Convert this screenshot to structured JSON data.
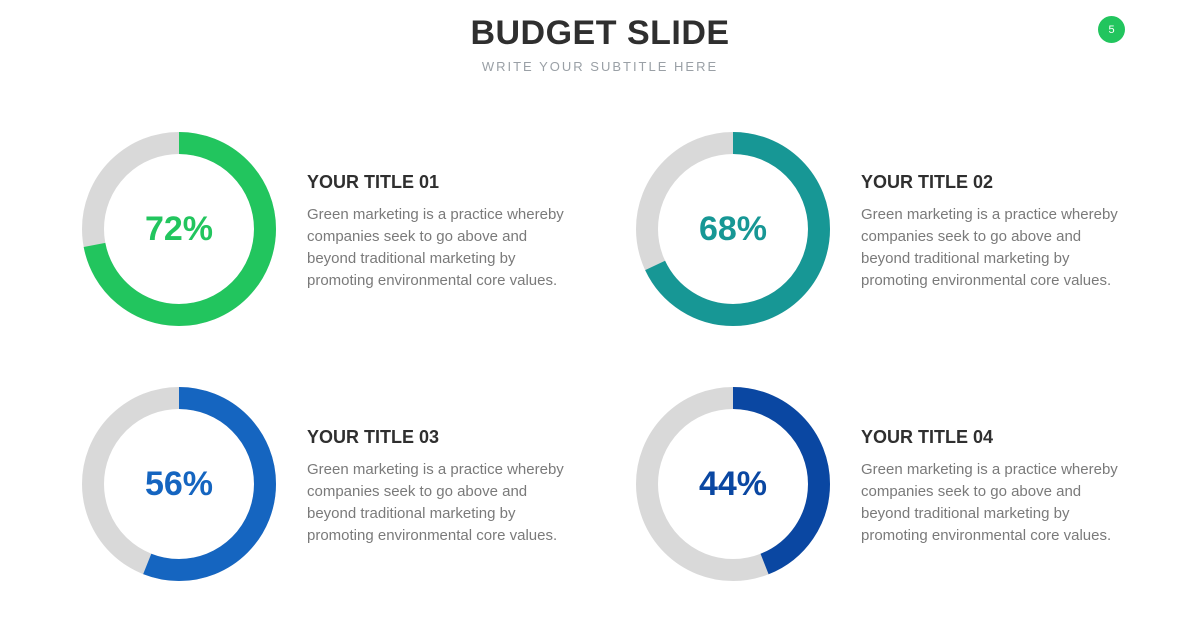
{
  "header": {
    "title": "BUDGET SLIDE",
    "subtitle": "WRITE YOUR SUBTITLE HERE",
    "page_number": "5",
    "page_badge_color": "#22c55e"
  },
  "chart_data": [
    {
      "type": "pie",
      "categories": [
        "Filled",
        "Remaining"
      ],
      "values": [
        72,
        28
      ],
      "title": "YOUR TITLE 01",
      "center_label": "72%",
      "description": "Green marketing is a practice whereby companies seek to go above and beyond traditional marketing by promoting environmental core values.",
      "colors": {
        "fill": "#22c55e",
        "track": "#d9d9d9",
        "label": "#22c55e"
      }
    },
    {
      "type": "pie",
      "categories": [
        "Filled",
        "Remaining"
      ],
      "values": [
        68,
        32
      ],
      "title": "YOUR TITLE 02",
      "center_label": "68%",
      "description": "Green marketing is a practice whereby companies seek to go above and beyond traditional marketing by promoting environmental core values.",
      "colors": {
        "fill": "#179795",
        "track": "#d9d9d9",
        "label": "#179795"
      }
    },
    {
      "type": "pie",
      "categories": [
        "Filled",
        "Remaining"
      ],
      "values": [
        56,
        44
      ],
      "title": "YOUR TITLE 03",
      "center_label": "56%",
      "description": "Green marketing is a practice whereby companies seek to go above and beyond traditional marketing by promoting environmental core values.",
      "colors": {
        "fill": "#1565c0",
        "track": "#d9d9d9",
        "label": "#1565c0"
      }
    },
    {
      "type": "pie",
      "categories": [
        "Filled",
        "Remaining"
      ],
      "values": [
        44,
        56
      ],
      "title": "YOUR TITLE 04",
      "center_label": "44%",
      "description": "Green marketing is a practice whereby companies seek to go above and beyond traditional marketing by promoting environmental core values.",
      "colors": {
        "fill": "#0a47a2",
        "track": "#d9d9d9",
        "label": "#0a47a2"
      }
    }
  ]
}
